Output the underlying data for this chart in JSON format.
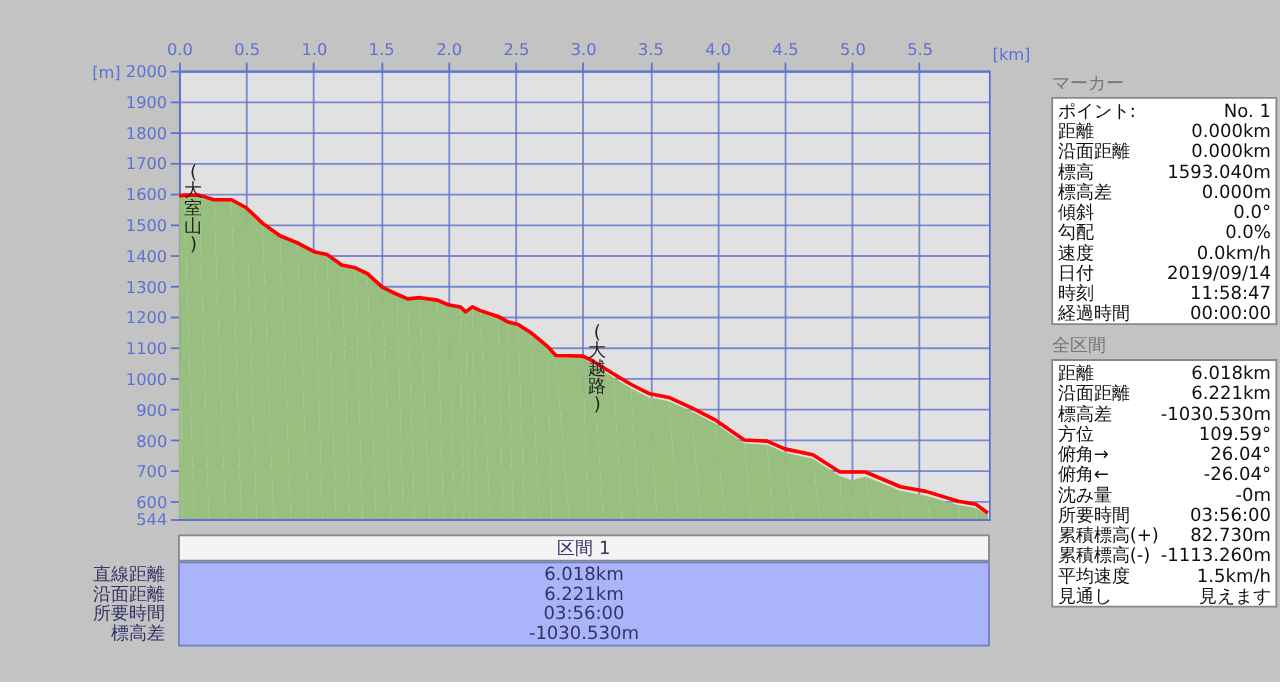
{
  "chart_data": [
    {
      "type": "line",
      "xlabel": "[km]",
      "ylabel": "[m]",
      "xlim": [
        0,
        6.018
      ],
      "ylim": [
        544,
        2000
      ],
      "xticks": [
        {
          "value": 0,
          "label": "0.0"
        },
        {
          "value": 0.5,
          "label": "0.5"
        },
        {
          "value": 1,
          "label": "1.0"
        },
        {
          "value": 1.5,
          "label": "1.5"
        },
        {
          "value": 2,
          "label": "2.0"
        },
        {
          "value": 2.5,
          "label": "2.5"
        },
        {
          "value": 3,
          "label": "3.0"
        },
        {
          "value": 3.5,
          "label": "3.5"
        },
        {
          "value": 4,
          "label": "4.0"
        },
        {
          "value": 4.5,
          "label": "4.5"
        },
        {
          "value": 5,
          "label": "5.0"
        },
        {
          "value": 5.5,
          "label": "5.5"
        }
      ],
      "yticks": [
        544,
        600,
        700,
        800,
        900,
        1000,
        1100,
        1200,
        1300,
        1400,
        1500,
        1600,
        1700,
        1800,
        1900,
        2000
      ],
      "grid": true,
      "series": [
        {
          "type": "area",
          "color": "#98bf80",
          "x": [
            0,
            0.04,
            0.15,
            0.26,
            0.39,
            0.5,
            0.62,
            0.75,
            0.88,
            1.01,
            1.1,
            1.21,
            1.31,
            1.4,
            1.51,
            1.62,
            1.7,
            1.79,
            1.92,
            2.0,
            2.09,
            2.13,
            2.18,
            2.24,
            2.37,
            2.44,
            2.52,
            2.61,
            2.74,
            2.8,
            3.0,
            3.08,
            3.23,
            3.36,
            3.49,
            3.64,
            3.81,
            3.98,
            4.2,
            4.37,
            4.5,
            4.71,
            4.91,
            5.0,
            5.1,
            5.36,
            5.55,
            5.79,
            5.92,
            6.01
          ],
          "values": [
            1593,
            1596,
            1596,
            1581,
            1581,
            1552,
            1500,
            1458,
            1436,
            1406,
            1400,
            1366,
            1357,
            1338,
            1292,
            1270,
            1256,
            1260,
            1252,
            1236,
            1230,
            1214,
            1230,
            1218,
            1198,
            1181,
            1172,
            1146,
            1099,
            1070,
            1066,
            1046,
            1003,
            968,
            940,
            927,
            893,
            855,
            790,
            785,
            760,
            740,
            684,
            670,
            682,
            636,
            620,
            590,
            580,
            560
          ]
        },
        {
          "type": "line",
          "color": "#ff0000",
          "x": [
            0,
            0.04,
            0.15,
            0.26,
            0.39,
            0.5,
            0.62,
            0.75,
            0.88,
            1.01,
            1.1,
            1.21,
            1.31,
            1.4,
            1.51,
            1.62,
            1.7,
            1.79,
            1.92,
            2.0,
            2.09,
            2.13,
            2.18,
            2.24,
            2.37,
            2.44,
            2.52,
            2.61,
            2.74,
            2.8,
            3.0,
            3.08,
            3.23,
            3.36,
            3.49,
            3.64,
            3.81,
            3.98,
            4.2,
            4.37,
            4.5,
            4.71,
            4.91,
            5.1,
            5.36,
            5.55,
            5.79,
            5.92,
            6.01
          ],
          "values": [
            1593,
            1596,
            1596,
            1581,
            1581,
            1555,
            1505,
            1464,
            1441,
            1411,
            1403,
            1369,
            1360,
            1341,
            1297,
            1274,
            1259,
            1263,
            1255,
            1240,
            1233,
            1217,
            1233,
            1221,
            1202,
            1185,
            1176,
            1151,
            1104,
            1075,
            1073,
            1056,
            1015,
            981,
            952,
            939,
            905,
            867,
            801,
            797,
            772,
            753,
            697,
            697,
            649,
            634,
            602,
            592,
            564
          ]
        }
      ],
      "annotations": [
        {
          "text": "(大室山)",
          "x": 0,
          "y": 1593
        },
        {
          "text": "(大越路)",
          "x": 3.0,
          "y": 1073
        }
      ]
    },
    {
      "type": "other",
      "title": "マーカー",
      "annotations": [
        "ポイント:",
        "No. 1",
        "距離",
        "0.000km",
        "沿面距離",
        "0.000km",
        "標高",
        "1593.040m",
        "標高差",
        "0.000m",
        "傾斜",
        "0.0°",
        "勾配",
        "0.0%",
        "速度",
        "0.0km/h",
        "日付",
        "2019/09/14",
        "時刻",
        "11:58:47",
        "経過時間",
        "00:00:00"
      ]
    },
    {
      "type": "other",
      "title": "全区間",
      "annotations": [
        "距離",
        "6.018km",
        "沿面距離",
        "6.221km",
        "標高差",
        "-1030.530m",
        "方位",
        "109.59°",
        "俯角→",
        "26.04°",
        "俯角←",
        "-26.04°",
        "沈み量",
        "-0m",
        "所要時間",
        "03:56:00",
        "累積標高(+)",
        "82.730m",
        "累積標高(-)",
        "-1113.260m",
        "平均速度",
        "1.5km/h",
        "見通し",
        "見えます"
      ]
    },
    {
      "type": "other",
      "title": "区間 1",
      "annotations": [
        "直線距離",
        "6.018km",
        "沿面距離",
        "6.221km",
        "所要時間",
        "03:56:00",
        "標高差",
        "-1030.530m"
      ]
    }
  ]
}
